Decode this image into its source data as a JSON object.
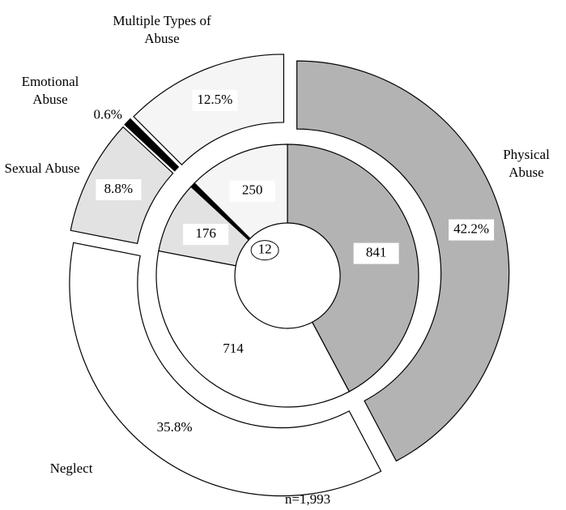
{
  "chart_data": {
    "type": "nested-donut",
    "categories": [
      "Physical Abuse",
      "Neglect",
      "Sexual Abuse",
      "Emotional Abuse",
      "Multiple Types of Abuse"
    ],
    "colors": [
      "#b3b3b3",
      "#ffffff",
      "#e2e2e2",
      "#000000",
      "#f5f5f5"
    ],
    "inner": {
      "values": [
        841,
        714,
        176,
        12,
        250
      ]
    },
    "outer": {
      "values": [
        42.2,
        35.8,
        8.8,
        0.6,
        12.5
      ],
      "value_labels": [
        "42.2%",
        "35.8%",
        "8.8%",
        "0.6%",
        "12.5%"
      ]
    },
    "annotation": "n=1,993"
  }
}
